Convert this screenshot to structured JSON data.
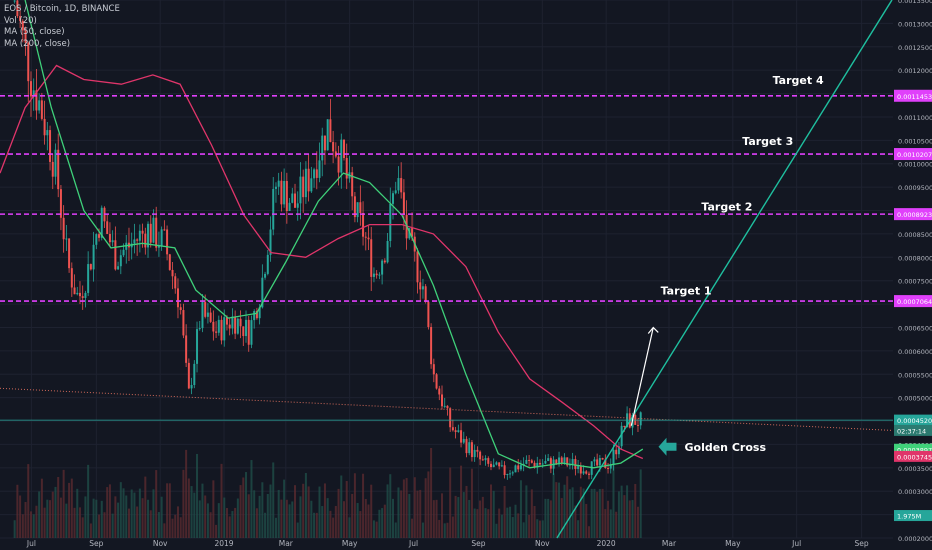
{
  "legend": {
    "symbol": "EOS / Bitcoin, 1D, BINANCE",
    "vol": "Vol (20)",
    "ma50": "MA (50, close)",
    "ma200": "MA (200, close)"
  },
  "colors": {
    "background": "#131722",
    "bull": "#26a69a",
    "bear": "#ef5350",
    "ma50": "#3fd17a",
    "ma200": "#e0356a",
    "target_line": "#e040fb",
    "trendline": "#1fbf9f",
    "arrow": "#ffffff",
    "golden_arrow": "#26a69a",
    "support": "#d26a5a",
    "price_line": "#26a69a"
  },
  "annotations": {
    "targets": [
      "Target 1",
      "Target 2",
      "Target 3",
      "Target 4"
    ],
    "golden_cross": "Golden Cross"
  },
  "price_labels": {
    "target1": "0.0007064",
    "target2": "0.0008923",
    "target3": "0.0010207",
    "target4": "0.0011453",
    "current": "0.0004520",
    "countdown": "02:37:14",
    "ma50": "0.0003897",
    "ma200": "0.0003745",
    "volume": "1.975M"
  },
  "chart_data": {
    "type": "candlestick",
    "symbol": "EOS / Bitcoin",
    "interval": "1D",
    "exchange": "BINANCE",
    "y_scale": "linear",
    "ylim": [
      0.0002,
      0.00135
    ],
    "y_ticks": [
      "0.0002000",
      "0.0002500",
      "0.0003000",
      "0.0003500",
      "0.0004000",
      "0.0004500",
      "0.0005000",
      "0.0005500",
      "0.0006000",
      "0.0006500",
      "0.0007000",
      "0.0007500",
      "0.0008000",
      "0.0008500",
      "0.0009000",
      "0.0009500",
      "0.0010000",
      "0.0010500",
      "0.0011000",
      "0.0011500",
      "0.0012000",
      "0.0012500",
      "0.0013000",
      "0.0013500"
    ],
    "x_ticks": [
      "Jul",
      "Sep",
      "Nov",
      "2019",
      "Mar",
      "May",
      "Jul",
      "Sep",
      "Nov",
      "2020",
      "Mar",
      "May",
      "Jul",
      "Sep"
    ],
    "close_path": [
      {
        "x": "2018-06-15",
        "y": 0.00135
      },
      {
        "x": "2018-07-01",
        "y": 0.00118
      },
      {
        "x": "2018-07-10",
        "y": 0.00112
      },
      {
        "x": "2018-07-25",
        "y": 0.00098
      },
      {
        "x": "2018-08-05",
        "y": 0.00078
      },
      {
        "x": "2018-08-15",
        "y": 0.00071
      },
      {
        "x": "2018-08-25",
        "y": 0.00078
      },
      {
        "x": "2018-09-05",
        "y": 0.00089
      },
      {
        "x": "2018-09-20",
        "y": 0.0008
      },
      {
        "x": "2018-10-05",
        "y": 0.00083
      },
      {
        "x": "2018-10-20",
        "y": 0.00086
      },
      {
        "x": "2018-11-05",
        "y": 0.00083
      },
      {
        "x": "2018-11-20",
        "y": 0.0007
      },
      {
        "x": "2018-11-28",
        "y": 0.0005
      },
      {
        "x": "2018-12-10",
        "y": 0.00068
      },
      {
        "x": "2018-12-25",
        "y": 0.00064
      },
      {
        "x": "2019-01-10",
        "y": 0.00067
      },
      {
        "x": "2019-01-25",
        "y": 0.00064
      },
      {
        "x": "2019-02-05",
        "y": 0.00073
      },
      {
        "x": "2019-02-20",
        "y": 0.00096
      },
      {
        "x": "2019-03-10",
        "y": 0.00091
      },
      {
        "x": "2019-03-25",
        "y": 0.00098
      },
      {
        "x": "2019-04-10",
        "y": 0.00108
      },
      {
        "x": "2019-04-25",
        "y": 0.001
      },
      {
        "x": "2019-05-05",
        "y": 0.0009
      },
      {
        "x": "2019-05-15",
        "y": 0.00085
      },
      {
        "x": "2019-05-25",
        "y": 0.00076
      },
      {
        "x": "2019-06-05",
        "y": 0.00083
      },
      {
        "x": "2019-06-15",
        "y": 0.00098
      },
      {
        "x": "2019-06-25",
        "y": 0.00084
      },
      {
        "x": "2019-07-10",
        "y": 0.00074
      },
      {
        "x": "2019-07-20",
        "y": 0.00055
      },
      {
        "x": "2019-08-05",
        "y": 0.00044
      },
      {
        "x": "2019-08-20",
        "y": 0.0004
      },
      {
        "x": "2019-09-05",
        "y": 0.00036
      },
      {
        "x": "2019-09-25",
        "y": 0.00034
      },
      {
        "x": "2019-10-15",
        "y": 0.00036
      },
      {
        "x": "2019-11-05",
        "y": 0.00036
      },
      {
        "x": "2019-11-25",
        "y": 0.00036
      },
      {
        "x": "2019-12-15",
        "y": 0.00035
      },
      {
        "x": "2020-01-05",
        "y": 0.00036
      },
      {
        "x": "2020-01-20",
        "y": 0.00045
      },
      {
        "x": "2020-02-05",
        "y": 0.00045
      }
    ],
    "ma50_path": [
      {
        "x": "2018-06-25",
        "y": 0.00135
      },
      {
        "x": "2018-07-20",
        "y": 0.00112
      },
      {
        "x": "2018-08-20",
        "y": 0.0009
      },
      {
        "x": "2018-09-15",
        "y": 0.00082
      },
      {
        "x": "2018-10-15",
        "y": 0.00083
      },
      {
        "x": "2018-11-15",
        "y": 0.00082
      },
      {
        "x": "2018-12-05",
        "y": 0.00073
      },
      {
        "x": "2019-01-05",
        "y": 0.00067
      },
      {
        "x": "2019-02-01",
        "y": 0.00068
      },
      {
        "x": "2019-03-01",
        "y": 0.00079
      },
      {
        "x": "2019-04-01",
        "y": 0.00092
      },
      {
        "x": "2019-04-25",
        "y": 0.00098
      },
      {
        "x": "2019-05-20",
        "y": 0.00096
      },
      {
        "x": "2019-06-20",
        "y": 0.00089
      },
      {
        "x": "2019-07-20",
        "y": 0.00074
      },
      {
        "x": "2019-08-20",
        "y": 0.00055
      },
      {
        "x": "2019-09-20",
        "y": 0.00038
      },
      {
        "x": "2019-10-20",
        "y": 0.00035
      },
      {
        "x": "2019-11-20",
        "y": 0.00036
      },
      {
        "x": "2019-12-20",
        "y": 0.00035
      },
      {
        "x": "2020-01-15",
        "y": 0.00036
      },
      {
        "x": "2020-02-05",
        "y": 0.00039
      }
    ],
    "ma200_path": [
      {
        "x": "2018-06-01",
        "y": 0.00098
      },
      {
        "x": "2018-06-25",
        "y": 0.00112
      },
      {
        "x": "2018-07-25",
        "y": 0.00121
      },
      {
        "x": "2018-08-20",
        "y": 0.00118
      },
      {
        "x": "2018-09-25",
        "y": 0.00117
      },
      {
        "x": "2018-10-25",
        "y": 0.00119
      },
      {
        "x": "2018-11-20",
        "y": 0.00117
      },
      {
        "x": "2018-12-20",
        "y": 0.00104
      },
      {
        "x": "2019-01-20",
        "y": 0.00089
      },
      {
        "x": "2019-02-15",
        "y": 0.00081
      },
      {
        "x": "2019-03-20",
        "y": 0.0008
      },
      {
        "x": "2019-04-20",
        "y": 0.00084
      },
      {
        "x": "2019-05-20",
        "y": 0.00087
      },
      {
        "x": "2019-06-20",
        "y": 0.00087
      },
      {
        "x": "2019-07-20",
        "y": 0.00085
      },
      {
        "x": "2019-08-20",
        "y": 0.00078
      },
      {
        "x": "2019-09-20",
        "y": 0.00064
      },
      {
        "x": "2019-10-20",
        "y": 0.00054
      },
      {
        "x": "2019-11-20",
        "y": 0.00049
      },
      {
        "x": "2019-12-20",
        "y": 0.00044
      },
      {
        "x": "2020-01-15",
        "y": 0.00039
      },
      {
        "x": "2020-02-05",
        "y": 0.00037
      }
    ],
    "horizontal_levels": [
      {
        "label": "Target 1",
        "value": 0.0007064
      },
      {
        "label": "Target 2",
        "value": 0.0008923
      },
      {
        "label": "Target 3",
        "value": 0.0010207
      },
      {
        "label": "Target 4",
        "value": 0.0011453
      }
    ],
    "current_price": 0.000452,
    "descending_support": {
      "from": {
        "x": "2018-06-01",
        "y": 0.00052
      },
      "to": {
        "x": "2020-09-30",
        "y": 0.00043
      }
    },
    "ascending_trendline": {
      "from": {
        "x": "2019-11-15",
        "y": 0.0002
      },
      "to": {
        "x": "2020-09-30",
        "y": 0.00135
      }
    },
    "projection_arrow": {
      "from": {
        "x": "2020-01-25",
        "y": 0.00044
      },
      "to": {
        "x": "2020-02-15",
        "y": 0.00065
      }
    },
    "golden_cross_date": "2020-01-20",
    "legend_placement": "top-left",
    "grid": true
  }
}
